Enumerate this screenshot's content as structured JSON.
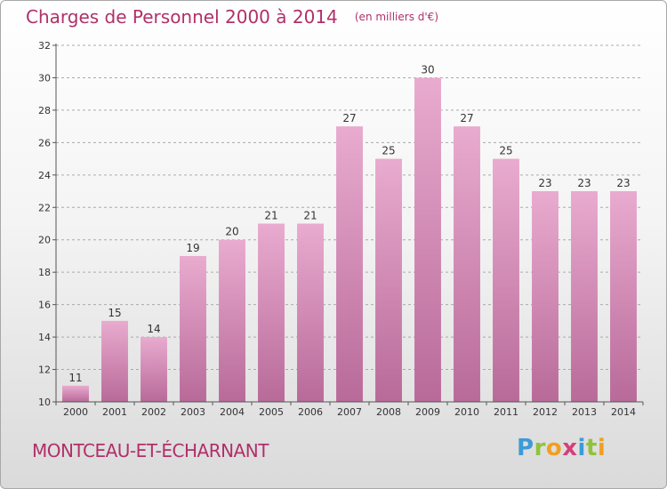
{
  "title": "Charges de Personnel 2000 à 2014",
  "unit_note": "(en milliers d'€)",
  "commune": "MONTCEAU-ET-ÉCHARNANT",
  "logo": {
    "text": "Proxiti",
    "letters": [
      {
        "char": "P",
        "color": "#3d9bd6"
      },
      {
        "char": "r",
        "color": "#8fc33a"
      },
      {
        "char": "o",
        "color": "#f0a020"
      },
      {
        "char": "x",
        "color": "#d4407a"
      },
      {
        "char": "i",
        "color": "#3d9bd6"
      },
      {
        "char": "t",
        "color": "#8fc33a"
      },
      {
        "char": "i",
        "color": "#f0a020"
      }
    ]
  },
  "colors": {
    "title": "#b0306a",
    "bar_top": "#e9abcf",
    "bar_bottom": "#b86a99",
    "grid": "#aaaaaa"
  },
  "chart_data": {
    "type": "bar",
    "categories": [
      "2000",
      "2001",
      "2002",
      "2003",
      "2004",
      "2005",
      "2006",
      "2007",
      "2008",
      "2009",
      "2010",
      "2011",
      "2012",
      "2013",
      "2014"
    ],
    "values": [
      11,
      15,
      14,
      19,
      20,
      21,
      21,
      27,
      25,
      30,
      27,
      25,
      23,
      23,
      23
    ],
    "title": "Charges de Personnel 2000 à 2014",
    "ylim": [
      10,
      32
    ],
    "yticks": [
      10,
      12,
      14,
      16,
      18,
      20,
      22,
      24,
      26,
      28,
      30,
      32
    ],
    "grid": "horizontal dashed"
  }
}
